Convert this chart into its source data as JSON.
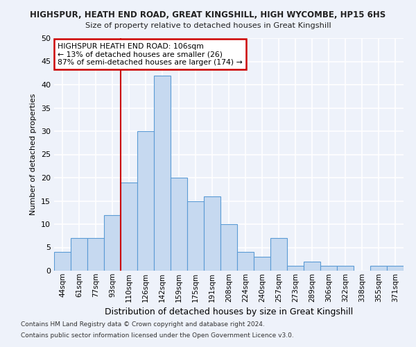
{
  "title1": "HIGHSPUR, HEATH END ROAD, GREAT KINGSHILL, HIGH WYCOMBE, HP15 6HS",
  "title2": "Size of property relative to detached houses in Great Kingshill",
  "xlabel": "Distribution of detached houses by size in Great Kingshill",
  "ylabel": "Number of detached properties",
  "bar_labels": [
    "44sqm",
    "61sqm",
    "77sqm",
    "93sqm",
    "110sqm",
    "126sqm",
    "142sqm",
    "159sqm",
    "175sqm",
    "191sqm",
    "208sqm",
    "224sqm",
    "240sqm",
    "257sqm",
    "273sqm",
    "289sqm",
    "306sqm",
    "322sqm",
    "338sqm",
    "355sqm",
    "371sqm"
  ],
  "bar_values": [
    4,
    7,
    7,
    12,
    19,
    30,
    42,
    20,
    15,
    16,
    10,
    4,
    3,
    7,
    1,
    2,
    1,
    1,
    0,
    1,
    1
  ],
  "bar_color": "#c6d9f0",
  "bar_edge_color": "#5b9bd5",
  "vline_x": 3.5,
  "vline_color": "#cc0000",
  "ylim": [
    0,
    50
  ],
  "yticks": [
    0,
    5,
    10,
    15,
    20,
    25,
    30,
    35,
    40,
    45,
    50
  ],
  "annotation_text": "HIGHSPUR HEATH END ROAD: 106sqm\n← 13% of detached houses are smaller (26)\n87% of semi-detached houses are larger (174) →",
  "annotation_box_color": "#ffffff",
  "annotation_box_edge": "#cc0000",
  "footer1": "Contains HM Land Registry data © Crown copyright and database right 2024.",
  "footer2": "Contains public sector information licensed under the Open Government Licence v3.0.",
  "background_color": "#eef2fa",
  "grid_color": "#ffffff"
}
